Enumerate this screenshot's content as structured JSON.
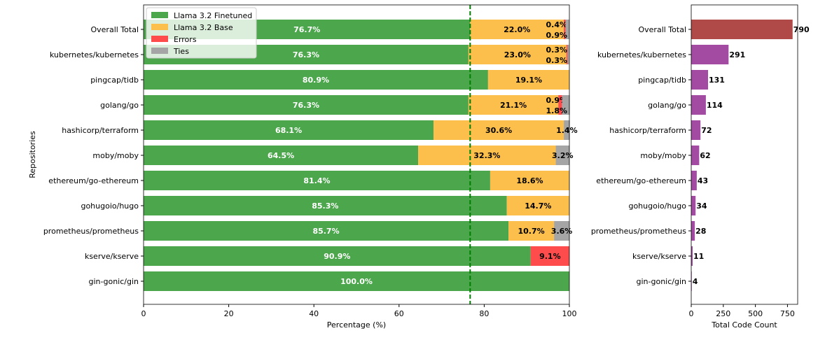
{
  "chart_data": [
    {
      "type": "bar",
      "orientation": "horizontal",
      "stacked": true,
      "categories": [
        "Overall Total",
        "kubernetes/kubernetes",
        "pingcap/tidb",
        "golang/go",
        "hashicorp/terraform",
        "moby/moby",
        "ethereum/go-ethereum",
        "gohugoio/hugo",
        "prometheus/prometheus",
        "kserve/kserve",
        "gin-gonic/gin"
      ],
      "series": [
        {
          "name": "Llama 3.2 Finetuned",
          "color": "#4ca64c",
          "values": [
            76.7,
            76.3,
            80.9,
            76.3,
            68.1,
            64.5,
            81.4,
            85.3,
            85.7,
            90.9,
            100.0
          ]
        },
        {
          "name": "Llama 3.2 Base",
          "color": "#fdbf4b",
          "values": [
            22.0,
            23.0,
            19.1,
            21.1,
            30.6,
            32.3,
            18.6,
            14.7,
            10.7,
            0,
            0
          ]
        },
        {
          "name": "Errors",
          "color": "#fe4b4b",
          "values": [
            0.4,
            0.3,
            0,
            0.9,
            0,
            0,
            0,
            0,
            0,
            9.1,
            0
          ]
        },
        {
          "name": "Ties",
          "color": "#a5a5a5",
          "values": [
            0.9,
            0.3,
            0,
            1.8,
            1.4,
            3.2,
            0,
            0,
            3.6,
            0,
            0
          ]
        }
      ],
      "reference_line": {
        "value": 76.7,
        "color": "#008000",
        "style": "dashed"
      },
      "xlabel": "Percentage (%)",
      "ylabel": "Repositories",
      "xlim": [
        0,
        100
      ],
      "xticks": [
        0,
        20,
        40,
        60,
        80,
        100
      ],
      "legend": "top-left"
    },
    {
      "type": "bar",
      "orientation": "horizontal",
      "categories": [
        "Overall Total",
        "kubernetes/kubernetes",
        "pingcap/tidb",
        "golang/go",
        "hashicorp/terraform",
        "moby/moby",
        "ethereum/go-ethereum",
        "gohugoio/hugo",
        "prometheus/prometheus",
        "kserve/kserve",
        "gin-gonic/gin"
      ],
      "values": [
        790,
        291,
        131,
        114,
        72,
        62,
        43,
        34,
        28,
        11,
        4
      ],
      "colors": {
        "total": "#b04a48",
        "repo": "#a34ba3"
      },
      "xlabel": "Total Code Count",
      "xlim": [
        0,
        829.5
      ],
      "xticks": [
        0,
        250,
        500,
        750
      ]
    }
  ]
}
